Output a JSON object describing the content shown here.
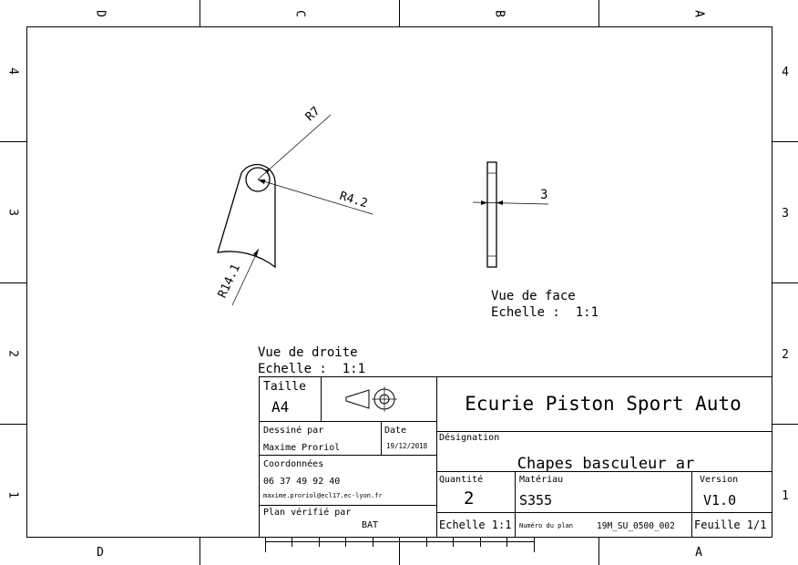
{
  "border": {
    "columns_top": [
      "D",
      "C",
      "B",
      "A"
    ],
    "columns_bottom": [
      "D",
      "A"
    ],
    "rows": [
      "4",
      "3",
      "2",
      "1"
    ]
  },
  "dimensions": {
    "right_view": [
      "R7",
      "R4.2",
      "R14.1"
    ],
    "face_view": [
      "3"
    ]
  },
  "view_labels": {
    "face": {
      "name": "Vue de face",
      "scale": "Echelle :  1:1"
    },
    "right": {
      "name": "Vue de droite",
      "scale": "Echelle :  1:1"
    }
  },
  "title_block": {
    "size_label": "Taille",
    "size_value": "A4",
    "company": "Ecurie Piston Sport Auto",
    "drawn_by_label": "Dessiné par",
    "drawn_by_value": "Maxime Proriol",
    "date_label": "Date",
    "date_value": "19/12/2018",
    "designation_label": "Désignation",
    "designation_value": "Chapes basculeur ar",
    "coordinates_label": "Coordonnées",
    "phone": "06 37 49 92 40",
    "email": "maxime.proriol@ecl17.ec-lyon.fr",
    "quantity_label": "Quantité",
    "quantity_value": "2",
    "material_label": "Matériau",
    "material_value": "S355",
    "version_label": "Version",
    "version_value": "V1.0",
    "checked_by_label": "Plan vérifié par",
    "checked_by_value": "BAT",
    "scale_value": "Echelle 1:1",
    "plan_number_label": "Numéro du plan",
    "plan_number_value": "19M_SU_0500_002",
    "sheet_value": "Feuille 1/1"
  }
}
